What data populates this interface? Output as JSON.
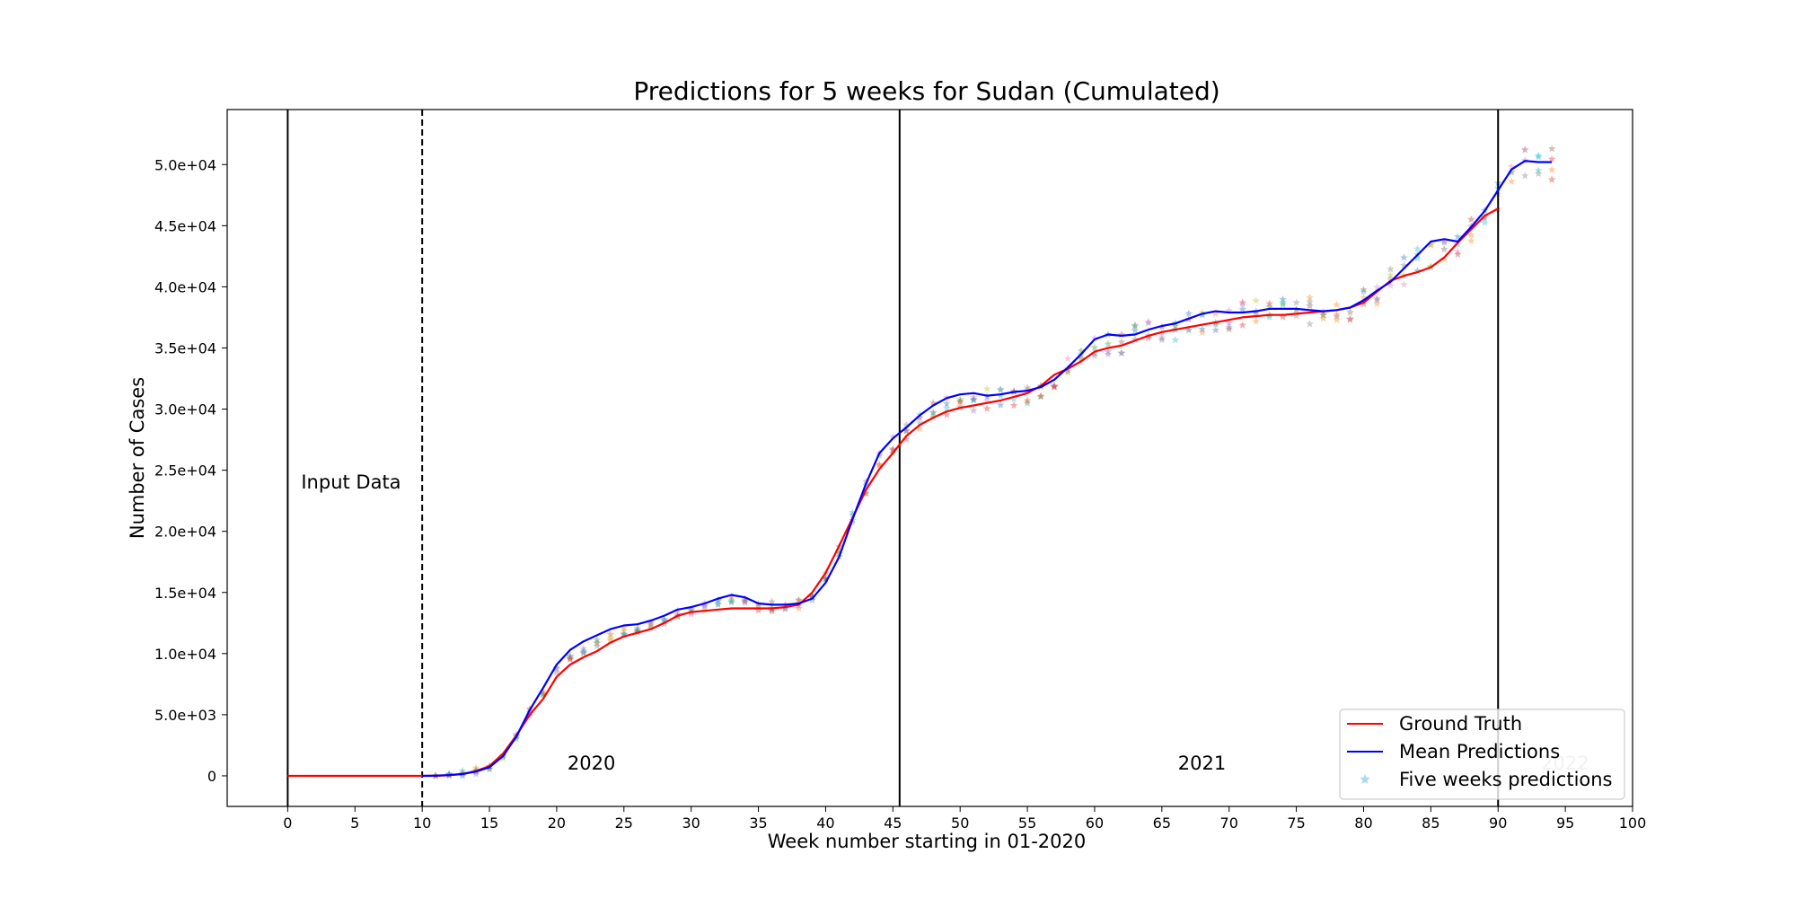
{
  "chart_data": {
    "type": "line",
    "title": "Predictions for 5 weeks for Sudan (Cumulated)",
    "xlabel": "Week number starting in 01-2020",
    "ylabel": "Number of Cases",
    "xlim": [
      -4.5,
      100
    ],
    "ylim": [
      -2500,
      54500
    ],
    "xticks": [
      0,
      5,
      10,
      15,
      20,
      25,
      30,
      35,
      40,
      45,
      50,
      55,
      60,
      65,
      70,
      75,
      80,
      85,
      90,
      95,
      100
    ],
    "yticks": [
      0,
      5000,
      10000,
      15000,
      20000,
      25000,
      30000,
      35000,
      40000,
      45000,
      50000
    ],
    "ytick_labels": [
      "0",
      "5.0e+03",
      "1.0e+04",
      "1.5e+04",
      "2.0e+04",
      "2.5e+04",
      "3.0e+04",
      "3.5e+04",
      "4.0e+04",
      "4.5e+04",
      "5.0e+04"
    ],
    "grid": false,
    "legend": "bottom-right",
    "vlines": [
      {
        "x": 0,
        "style": "solid"
      },
      {
        "x": 10,
        "style": "dashed"
      },
      {
        "x": 45.5,
        "style": "solid"
      },
      {
        "x": 90,
        "style": "solid"
      }
    ],
    "annotations": [
      {
        "text": "Input Data",
        "x": 1,
        "y": 23500,
        "color": "#000000"
      },
      {
        "text": "2020",
        "x": 20.8,
        "y": 500,
        "color": "#000000"
      },
      {
        "text": "2021",
        "x": 66.2,
        "y": 500,
        "color": "#000000"
      },
      {
        "text": "2022",
        "x": 93.2,
        "y": 500,
        "color": "#bbbbbb"
      }
    ],
    "series": [
      {
        "name": "Ground Truth",
        "kind": "line",
        "color": "#ff0000",
        "x": [
          0,
          1,
          2,
          3,
          4,
          5,
          6,
          7,
          8,
          9,
          10,
          11,
          12,
          13,
          14,
          15,
          16,
          17,
          18,
          19,
          20,
          21,
          22,
          23,
          24,
          25,
          26,
          27,
          28,
          29,
          30,
          31,
          32,
          33,
          34,
          35,
          36,
          37,
          38,
          39,
          40,
          41,
          42,
          43,
          44,
          45,
          46,
          47,
          48,
          49,
          50,
          51,
          52,
          53,
          54,
          55,
          56,
          57,
          58,
          59,
          60,
          61,
          62,
          63,
          64,
          65,
          66,
          67,
          68,
          69,
          70,
          71,
          72,
          73,
          74,
          75,
          76,
          77,
          78,
          79,
          80,
          81,
          82,
          83,
          84,
          85,
          86,
          87,
          88,
          89,
          90
        ],
        "y": [
          0,
          0,
          0,
          0,
          0,
          0,
          0,
          0,
          0,
          0,
          0,
          0,
          50,
          150,
          400,
          800,
          1800,
          3300,
          5000,
          6300,
          8100,
          9100,
          9700,
          10200,
          10900,
          11400,
          11700,
          12000,
          12500,
          13100,
          13400,
          13500,
          13600,
          13700,
          13700,
          13700,
          13700,
          13800,
          14000,
          15000,
          16600,
          18800,
          21100,
          23400,
          25100,
          26400,
          27800,
          28700,
          29300,
          29800,
          30100,
          30300,
          30500,
          30700,
          31000,
          31300,
          31900,
          32800,
          33300,
          33900,
          34700,
          35000,
          35200,
          35600,
          36000,
          36300,
          36500,
          36700,
          36900,
          37100,
          37300,
          37500,
          37600,
          37700,
          37700,
          37800,
          37900,
          38000,
          38100,
          38300,
          38700,
          39600,
          40500,
          40900,
          41200,
          41600,
          42400,
          43600,
          44700,
          45800,
          46400
        ]
      },
      {
        "name": "Mean Predictions",
        "kind": "line",
        "color": "#0000ff",
        "x": [
          10,
          11,
          12,
          13,
          14,
          15,
          16,
          17,
          18,
          19,
          20,
          21,
          22,
          23,
          24,
          25,
          26,
          27,
          28,
          29,
          30,
          31,
          32,
          33,
          34,
          35,
          36,
          37,
          38,
          39,
          40,
          41,
          42,
          43,
          44,
          45,
          46,
          47,
          48,
          49,
          50,
          51,
          52,
          53,
          54,
          55,
          56,
          57,
          58,
          59,
          60,
          61,
          62,
          63,
          64,
          65,
          66,
          67,
          68,
          69,
          70,
          71,
          72,
          73,
          74,
          75,
          76,
          77,
          78,
          79,
          80,
          81,
          82,
          83,
          84,
          85,
          86,
          87,
          88,
          89,
          90,
          91,
          92,
          93,
          94
        ],
        "y": [
          0,
          20,
          60,
          150,
          350,
          700,
          1600,
          3200,
          5400,
          7200,
          9100,
          10300,
          11000,
          11500,
          12000,
          12300,
          12400,
          12700,
          13100,
          13600,
          13800,
          14100,
          14500,
          14800,
          14600,
          14100,
          14000,
          14000,
          14100,
          14500,
          15800,
          17900,
          21000,
          23900,
          26400,
          27600,
          28500,
          29500,
          30300,
          30900,
          31200,
          31300,
          31100,
          31200,
          31400,
          31500,
          31800,
          32400,
          33400,
          34500,
          35700,
          36100,
          36000,
          36100,
          36500,
          36800,
          37000,
          37400,
          37800,
          38000,
          37900,
          37900,
          38000,
          38200,
          38200,
          38200,
          38100,
          38000,
          38100,
          38300,
          38900,
          39700,
          40400,
          41500,
          42600,
          43700,
          43900,
          43700,
          44900,
          46200,
          47900,
          49600,
          50300,
          50200,
          50200
        ]
      },
      {
        "name": "Five weeks predictions",
        "kind": "scatter",
        "color": "#5ab4d9"
      }
    ]
  }
}
